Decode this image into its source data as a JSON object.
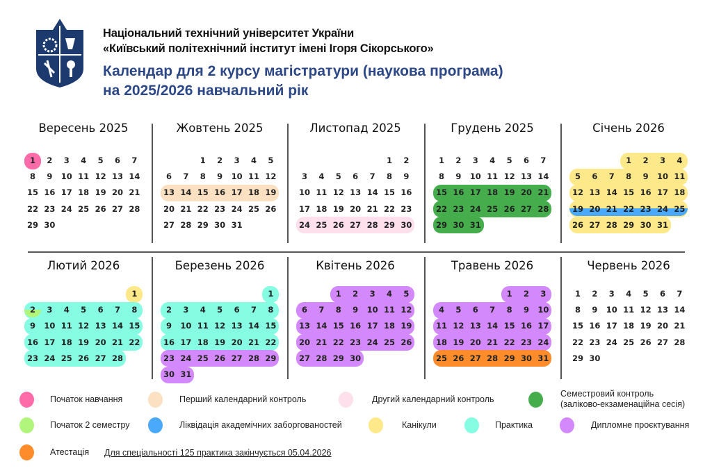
{
  "header": {
    "university_line1": "Національний технічний університет України",
    "university_line2": "«Київський політехнічний інститут імені Ігоря Сікорського»",
    "title_line1": "Календар для 2 курсу магістратури (наукова програма)",
    "title_line2": "на 2025/2026 навчальний рік",
    "logo": "kpi-shield-logo"
  },
  "colors": {
    "start": "#ff6aa8",
    "first_control": "#fbe0c1",
    "second_control": "#fde0ec",
    "session": "#46ad4d",
    "start_sem2": "#b2f57c",
    "debts": "#4aa9fb",
    "holidays": "#fde98a",
    "practice": "#86fde3",
    "diploma": "#d388fb",
    "attestation": "#ff8c2a",
    "title": "#2c4786",
    "logo": "#1d3a6e"
  },
  "months": [
    {
      "title": "Вересень 2025",
      "year": 2025,
      "month": 9,
      "ranges": [
        {
          "from": 1,
          "to": 1,
          "type": "start"
        }
      ]
    },
    {
      "title": "Жовтень 2025",
      "year": 2025,
      "month": 10,
      "ranges": [
        {
          "from": 13,
          "to": 19,
          "type": "first_control"
        }
      ]
    },
    {
      "title": "Листопад 2025",
      "year": 2025,
      "month": 11,
      "ranges": [
        {
          "from": 24,
          "to": 30,
          "type": "second_control"
        }
      ]
    },
    {
      "title": "Грудень 2025",
      "year": 2025,
      "month": 12,
      "ranges": [
        {
          "from": 15,
          "to": 31,
          "type": "session"
        }
      ]
    },
    {
      "title": "Січень 2026",
      "year": 2026,
      "month": 1,
      "ranges": [
        {
          "from": 1,
          "to": 31,
          "type": "holidays"
        },
        {
          "from": 19,
          "to": 25,
          "type": "debts",
          "half": "bottom"
        }
      ]
    },
    {
      "title": "Лютий 2026",
      "year": 2026,
      "month": 2,
      "ranges": [
        {
          "from": 1,
          "to": 1,
          "type": "holidays"
        },
        {
          "from": 2,
          "to": 28,
          "type": "practice"
        },
        {
          "from": 2,
          "to": 2,
          "type": "start_sem2",
          "half": "bottom"
        }
      ]
    },
    {
      "title": "Березень 2026",
      "year": 2026,
      "month": 3,
      "ranges": [
        {
          "from": 1,
          "to": 22,
          "type": "practice"
        },
        {
          "from": 23,
          "to": 31,
          "type": "diploma"
        }
      ]
    },
    {
      "title": "Квітень 2026",
      "year": 2026,
      "month": 4,
      "ranges": [
        {
          "from": 1,
          "to": 30,
          "type": "diploma"
        }
      ]
    },
    {
      "title": "Травень 2026",
      "year": 2026,
      "month": 5,
      "ranges": [
        {
          "from": 1,
          "to": 24,
          "type": "diploma"
        },
        {
          "from": 25,
          "to": 31,
          "type": "attestation"
        }
      ]
    },
    {
      "title": "Червень 2026",
      "year": 2026,
      "month": 6,
      "ranges": []
    }
  ],
  "legend": [
    {
      "type": "start",
      "label": "Початок навчання"
    },
    {
      "type": "first_control",
      "label": "Перший календарний контроль"
    },
    {
      "type": "second_control",
      "label": "Другий календарний контроль"
    },
    {
      "type": "session",
      "label": "Семестровий контроль",
      "label2": "(заліково-екзаменаційна сесія)"
    },
    {
      "type": "start_sem2",
      "label": "Початок 2 семестру"
    },
    {
      "type": "debts",
      "label": "Ліквідація академічних заборгованостей"
    },
    {
      "type": "holidays",
      "label": "Канікули"
    },
    {
      "type": "practice",
      "label": "Практика"
    },
    {
      "type": "diploma",
      "label": "Дипломне проєктування"
    },
    {
      "type": "attestation",
      "label": "Атестація"
    }
  ],
  "note": "Для спеціальності 125 практика закінчується 05.04.2026"
}
